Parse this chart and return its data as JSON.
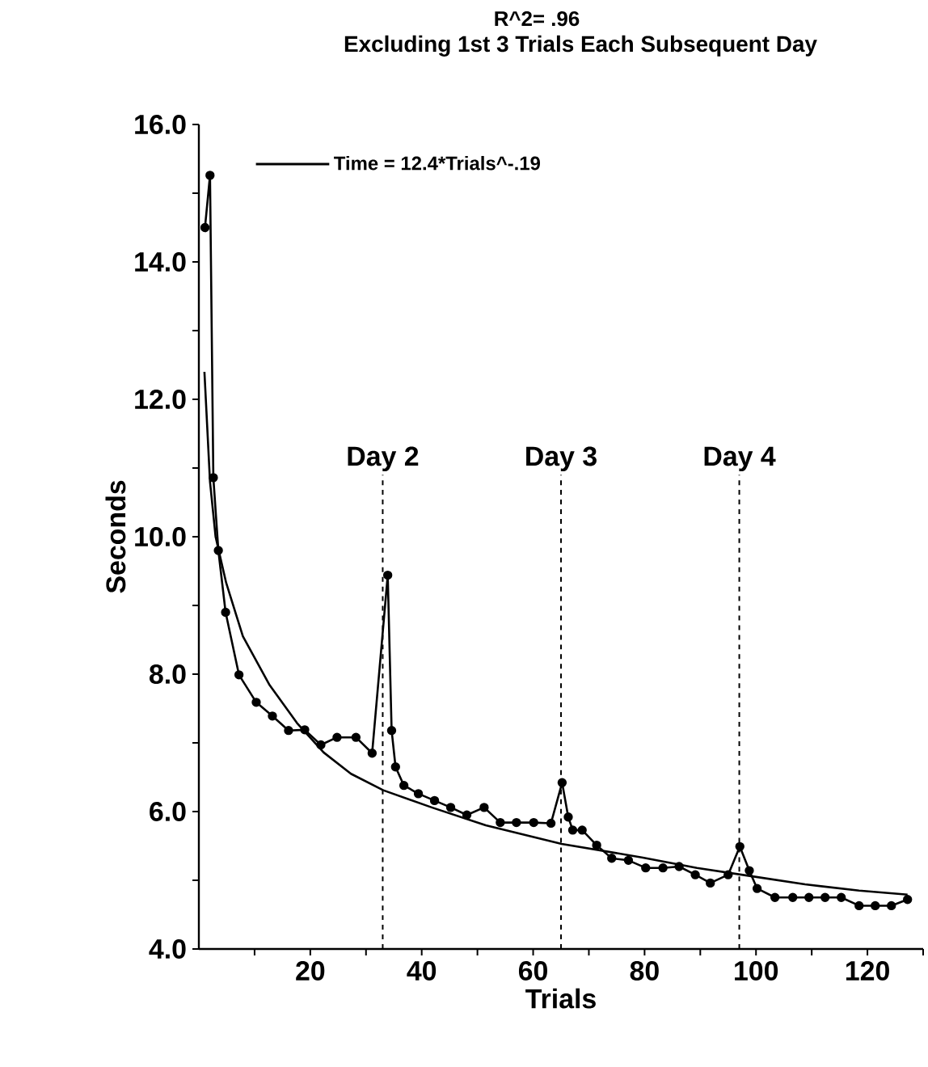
{
  "chart_data": {
    "type": "line",
    "title": "R^2= .96",
    "subtitle": "Excluding 1st 3 Trials Each Subsequent Day",
    "xlabel": "Trials",
    "ylabel": "Seconds",
    "xlim": [
      0,
      130
    ],
    "ylim": [
      4,
      16
    ],
    "xticks": [
      {
        "value": 10,
        "label": null
      },
      20,
      {
        "value": 30,
        "label": null
      },
      40,
      {
        "value": 50,
        "label": null
      },
      60,
      {
        "value": 70,
        "label": null
      },
      80,
      {
        "value": 90,
        "label": null
      },
      100,
      {
        "value": 110,
        "label": null
      },
      120,
      {
        "value": 130,
        "label": null
      }
    ],
    "yticks": [
      {
        "value": 4,
        "label": "4.0"
      },
      {
        "value": 5,
        "label": null
      },
      {
        "value": 6,
        "label": "6.0"
      },
      {
        "value": 7,
        "label": null
      },
      {
        "value": 8,
        "label": "8.0"
      },
      {
        "value": 9,
        "label": null
      },
      {
        "value": 10,
        "label": "10.0"
      },
      {
        "value": 11,
        "label": null
      },
      {
        "value": 12,
        "label": "12.0"
      },
      {
        "value": 13,
        "label": null
      },
      {
        "value": 14,
        "label": "14.0"
      },
      {
        "value": 15,
        "label": null
      },
      {
        "value": 16,
        "label": "16.0"
      }
    ],
    "series": [
      {
        "color": "#000000",
        "marker": "circle",
        "x": [
          1.1,
          2.0,
          2.6,
          3.5,
          4.8,
          7.2,
          10.3,
          13.2,
          16.1,
          19.0,
          21.9,
          24.8,
          28.2,
          31.1,
          33.9,
          34.6,
          35.3,
          36.8,
          39.4,
          42.3,
          45.2,
          48.1,
          51.2,
          54.1,
          57.0,
          60.1,
          63.2,
          65.2,
          66.3,
          67.1,
          68.8,
          71.4,
          74.1,
          77.1,
          80.2,
          83.3,
          86.2,
          89.1,
          91.8,
          95.0,
          97.1,
          98.8,
          100.2,
          103.4,
          106.6,
          109.5,
          112.4,
          115.3,
          118.5,
          121.4,
          124.3,
          127.2
        ],
        "values": [
          14.5,
          15.26,
          10.86,
          9.8,
          8.9,
          7.99,
          7.59,
          7.39,
          7.18,
          7.19,
          6.97,
          7.08,
          7.08,
          6.85,
          9.44,
          7.18,
          6.65,
          6.38,
          6.26,
          6.16,
          6.06,
          5.95,
          6.06,
          5.84,
          5.84,
          5.84,
          5.83,
          6.42,
          5.92,
          5.73,
          5.73,
          5.51,
          5.32,
          5.29,
          5.18,
          5.18,
          5.2,
          5.08,
          4.96,
          5.08,
          5.49,
          5.14,
          4.88,
          4.75,
          4.75,
          4.75,
          4.75,
          4.75,
          4.63,
          4.63,
          4.63,
          4.72
        ]
      },
      {
        "name": "Time = 12.4*Trials^-.19",
        "color": "#000000",
        "marker": "none",
        "x": [
          1,
          2,
          3,
          4.9,
          7.9,
          12.7,
          17.6,
          22.4,
          27.3,
          33.1,
          41.8,
          51.5,
          65.1,
          79.7,
          89.4,
          99.1,
          108.8,
          118.5,
          127.2
        ],
        "values": [
          12.4,
          10.8,
          10.0,
          9.33,
          8.55,
          7.84,
          7.29,
          6.86,
          6.55,
          6.31,
          6.06,
          5.8,
          5.53,
          5.33,
          5.18,
          5.06,
          4.94,
          4.85,
          4.79
        ]
      }
    ],
    "ref_lines": [
      {
        "axis": "x",
        "value": 33,
        "label": "Day 2",
        "line_style": "dashed"
      },
      {
        "axis": "x",
        "value": 65,
        "label": "Day 3",
        "line_style": "dashed"
      },
      {
        "axis": "x",
        "value": 97,
        "label": "Day 4",
        "line_style": "dashed"
      }
    ],
    "legend": "top left",
    "grid": false,
    "line_style": "solid"
  }
}
